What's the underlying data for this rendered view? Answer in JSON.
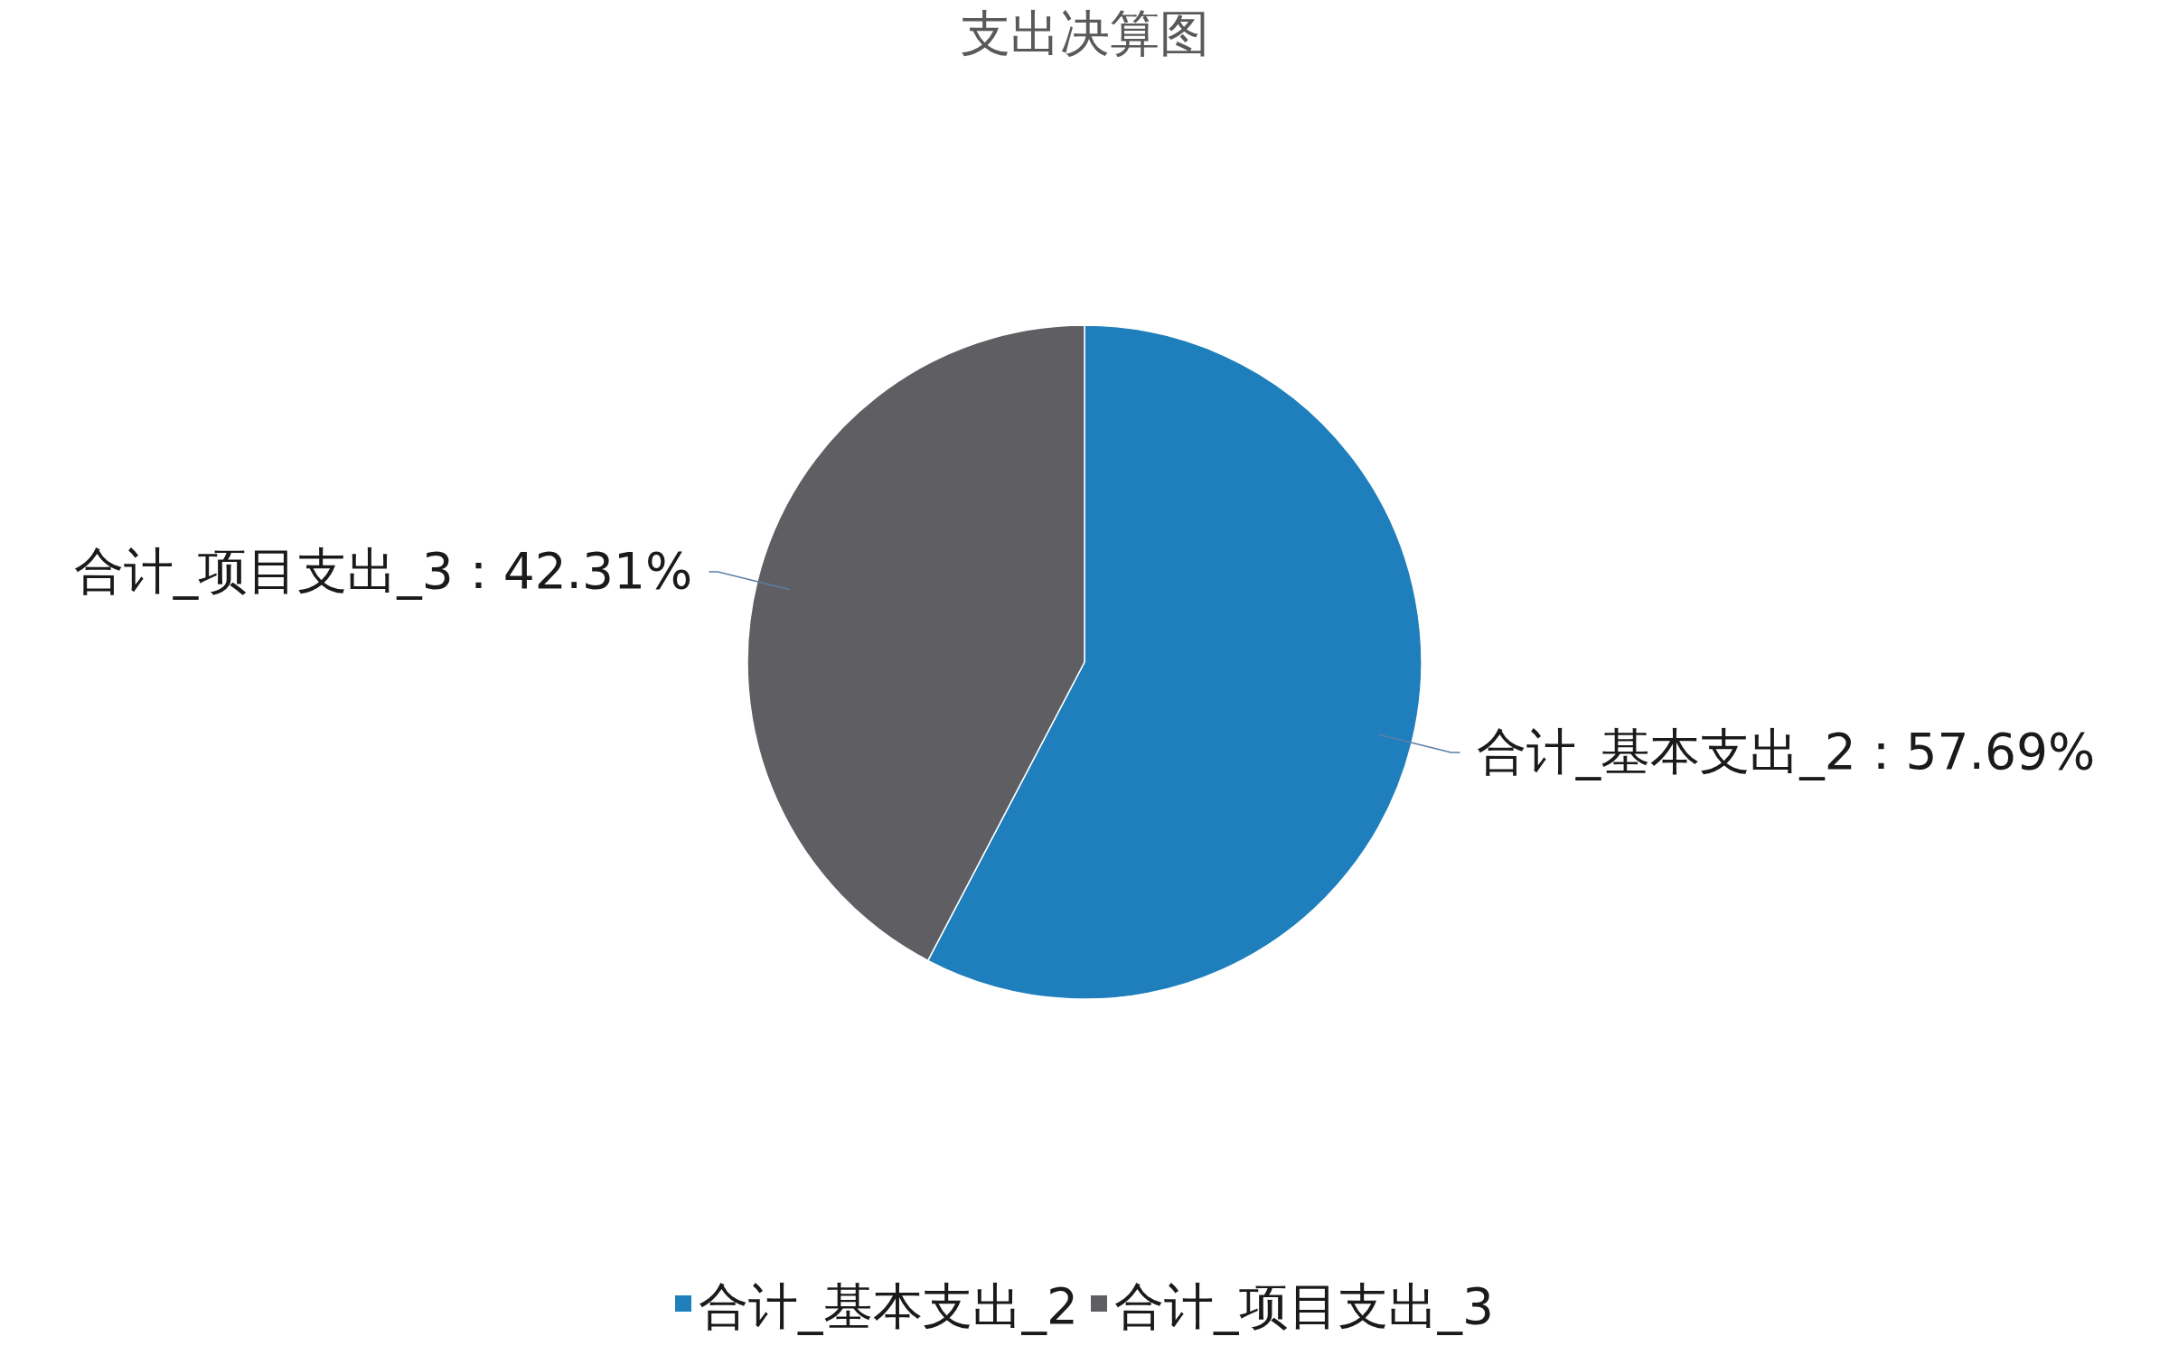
{
  "chart_data": {
    "type": "pie",
    "title": "支出决算图",
    "categories": [
      "合计_基本支出_2",
      "合计_项目支出_3"
    ],
    "values": [
      57.69,
      42.31
    ],
    "colors": [
      "#1f7fbc",
      "#5f5e63"
    ],
    "value_labels": [
      "合计_基本支出_2：57.69%",
      "合计_项目支出_3：42.31%"
    ],
    "legend": "bottom"
  }
}
